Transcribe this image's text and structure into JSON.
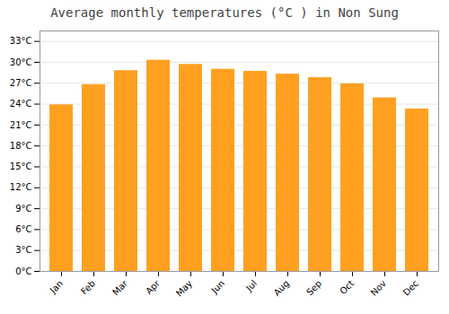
{
  "chart_data": {
    "type": "bar",
    "title": "Average monthly temperatures (°C ) in Non Sung",
    "categories": [
      "Jan",
      "Feb",
      "Mar",
      "Apr",
      "May",
      "Jun",
      "Jul",
      "Aug",
      "Sep",
      "Oct",
      "Nov",
      "Dec"
    ],
    "values": [
      23.9,
      26.8,
      28.8,
      30.3,
      29.7,
      29.0,
      28.7,
      28.3,
      27.8,
      26.9,
      24.9,
      23.3
    ],
    "color": "#FFA020",
    "ylim": [
      0,
      34.5
    ],
    "yticks": [
      {
        "value": 0,
        "label": "0°C"
      },
      {
        "value": 3,
        "label": "3°C"
      },
      {
        "value": 6,
        "label": "6°C"
      },
      {
        "value": 9,
        "label": "9°C"
      },
      {
        "value": 12,
        "label": "12°C"
      },
      {
        "value": 15,
        "label": "15°C"
      },
      {
        "value": 18,
        "label": "18°C"
      },
      {
        "value": 21,
        "label": "21°C"
      },
      {
        "value": 24,
        "label": "24°C"
      },
      {
        "value": 27,
        "label": "27°C"
      },
      {
        "value": 30,
        "label": "30°C"
      },
      {
        "value": 33,
        "label": "33°C"
      }
    ],
    "grid": true
  }
}
